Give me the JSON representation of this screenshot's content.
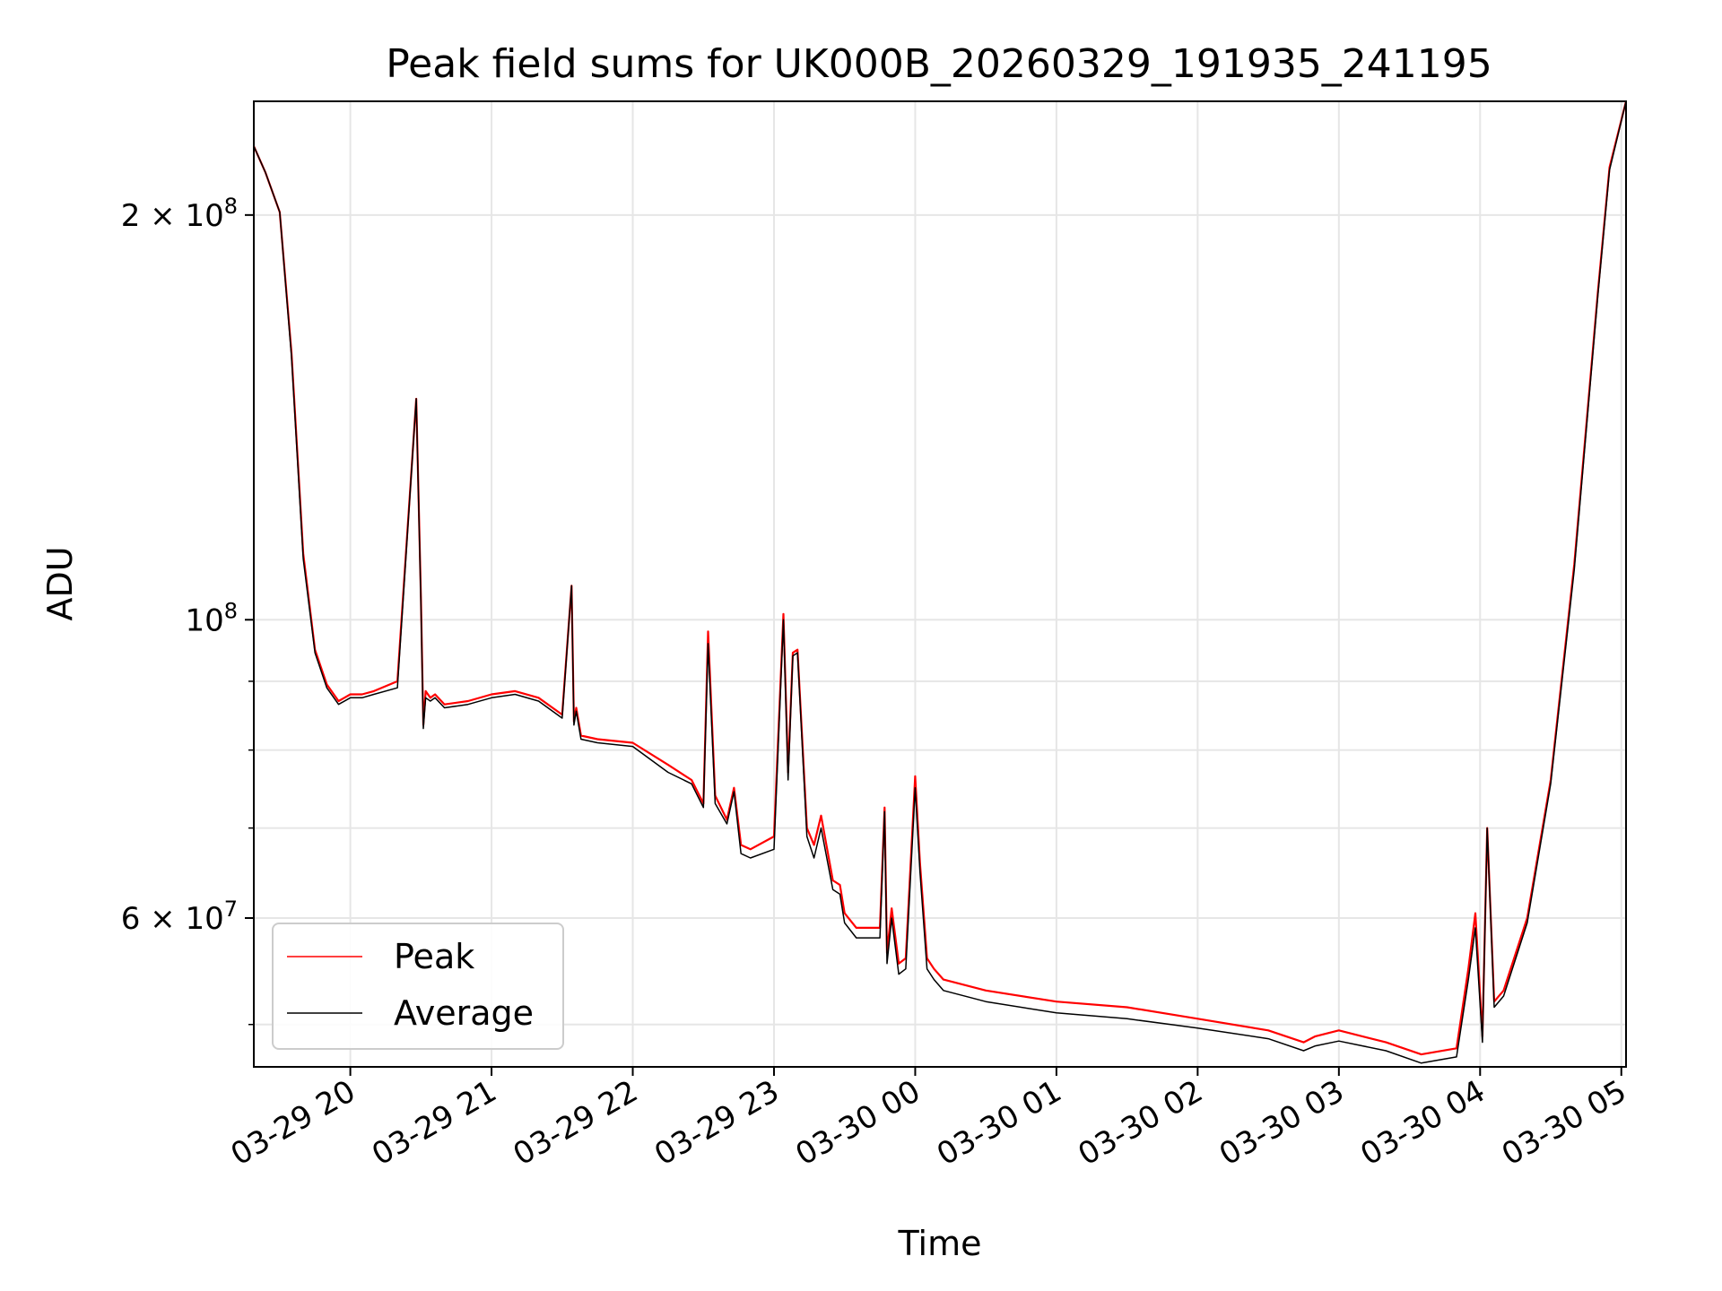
{
  "chart_data": {
    "type": "line",
    "title": "Peak field sums for UK000B_20260329_191935_241195",
    "xlabel": "Time",
    "ylabel": "ADU",
    "yscale": "log",
    "ylim": [
      46500000,
      243000000
    ],
    "xlim": [
      "03-29 19:19",
      "03-30 05:02"
    ],
    "grid": true,
    "legend": "lower-left",
    "colors": {
      "Peak": "#ff0000",
      "Average": "#000000"
    },
    "x_ticks": [
      "03-29 20",
      "03-29 21",
      "03-29 22",
      "03-29 23",
      "03-30 00",
      "03-30 01",
      "03-30 02",
      "03-30 03",
      "03-30 04",
      "03-30 05"
    ],
    "y_ticks": [
      {
        "value": 200000000,
        "mantissa": "2 × ",
        "base": "10",
        "exp": "8"
      },
      {
        "value": 100000000,
        "mantissa": "",
        "base": "10",
        "exp": "8"
      },
      {
        "value": 60000000,
        "mantissa": "6 × ",
        "base": "10",
        "exp": "7"
      }
    ],
    "y_minor_ticks": [
      50000000,
      70000000,
      80000000,
      90000000
    ],
    "x": [
      "03-29 19:19",
      "03-29 19:24",
      "03-29 19:30",
      "03-29 19:35",
      "03-29 19:40",
      "03-29 19:45",
      "03-29 19:50",
      "03-29 19:55",
      "03-29 20:00",
      "03-29 20:05",
      "03-29 20:10",
      "03-29 20:20",
      "03-29 20:28",
      "03-29 20:30",
      "03-29 20:31",
      "03-29 20:32",
      "03-29 20:34",
      "03-29 20:36",
      "03-29 20:40",
      "03-29 20:50",
      "03-29 21:00",
      "03-29 21:10",
      "03-29 21:20",
      "03-29 21:30",
      "03-29 21:34",
      "03-29 21:35",
      "03-29 21:36",
      "03-29 21:38",
      "03-29 21:45",
      "03-29 22:00",
      "03-29 22:15",
      "03-29 22:25",
      "03-29 22:30",
      "03-29 22:32",
      "03-29 22:35",
      "03-29 22:40",
      "03-29 22:43",
      "03-29 22:46",
      "03-29 22:50",
      "03-29 23:00",
      "03-29 23:04",
      "03-29 23:06",
      "03-29 23:08",
      "03-29 23:10",
      "03-29 23:14",
      "03-29 23:17",
      "03-29 23:20",
      "03-29 23:25",
      "03-29 23:28",
      "03-29 23:30",
      "03-29 23:35",
      "03-29 23:45",
      "03-29 23:47",
      "03-29 23:48",
      "03-29 23:50",
      "03-29 23:53",
      "03-29 23:56",
      "03-30 00:00",
      "03-30 00:02",
      "03-30 00:05",
      "03-30 00:08",
      "03-30 00:12",
      "03-30 00:30",
      "03-30 01:00",
      "03-30 01:30",
      "03-30 02:00",
      "03-30 02:30",
      "03-30 02:45",
      "03-30 02:50",
      "03-30 03:00",
      "03-30 03:20",
      "03-30 03:35",
      "03-30 03:50",
      "03-30 03:55",
      "03-30 03:58",
      "03-30 04:01",
      "03-30 04:03",
      "03-30 04:06",
      "03-30 04:10",
      "03-30 04:20",
      "03-30 04:30",
      "03-30 04:40",
      "03-30 04:50",
      "03-30 04:55",
      "03-30 05:02"
    ],
    "series": [
      {
        "name": "Peak",
        "values": [
          225000000,
          215000000,
          201000000,
          158000000,
          112000000,
          95000000,
          89500000,
          87000000,
          88000000,
          88000000,
          88500000,
          90000000,
          146000000,
          104000000,
          83500000,
          88500000,
          87500000,
          88000000,
          86500000,
          87000000,
          88000000,
          88500000,
          87500000,
          85000000,
          106000000,
          84000000,
          86000000,
          82000000,
          81500000,
          81000000,
          78000000,
          76000000,
          73000000,
          98000000,
          74000000,
          71000000,
          75000000,
          68000000,
          67500000,
          69000000,
          101000000,
          77000000,
          94500000,
          95000000,
          70000000,
          68000000,
          71500000,
          64000000,
          63500000,
          60500000,
          59000000,
          59000000,
          72500000,
          56500000,
          61000000,
          55500000,
          56000000,
          76500000,
          66000000,
          56000000,
          55000000,
          54000000,
          53000000,
          52000000,
          51500000,
          50500000,
          49500000,
          48500000,
          49000000,
          49500000,
          48500000,
          47500000,
          48000000,
          55000000,
          60500000,
          49000000,
          70000000,
          52000000,
          53000000,
          60000000,
          76000000,
          110000000,
          175000000,
          217000000,
          243000000
        ]
      },
      {
        "name": "Average",
        "values": [
          225000000,
          215000000,
          201000000,
          157000000,
          111000000,
          94500000,
          89000000,
          86500000,
          87500000,
          87500000,
          88000000,
          89000000,
          146000000,
          103000000,
          83000000,
          87500000,
          87000000,
          87500000,
          86000000,
          86500000,
          87500000,
          88000000,
          87000000,
          84500000,
          106000000,
          83500000,
          85500000,
          81500000,
          81000000,
          80500000,
          77000000,
          75500000,
          72500000,
          96000000,
          73000000,
          70500000,
          74500000,
          67000000,
          66500000,
          67500000,
          100000000,
          76000000,
          94000000,
          94500000,
          69000000,
          66500000,
          70000000,
          63000000,
          62500000,
          59500000,
          58000000,
          58000000,
          72000000,
          55500000,
          60000000,
          54500000,
          55000000,
          75000000,
          65000000,
          55000000,
          54000000,
          53000000,
          52000000,
          51000000,
          50500000,
          49700000,
          48800000,
          47800000,
          48200000,
          48600000,
          47800000,
          46800000,
          47300000,
          54000000,
          59000000,
          48500000,
          70000000,
          51500000,
          52500000,
          59500000,
          75500000,
          109000000,
          174000000,
          216000000,
          243000000
        ]
      }
    ]
  }
}
